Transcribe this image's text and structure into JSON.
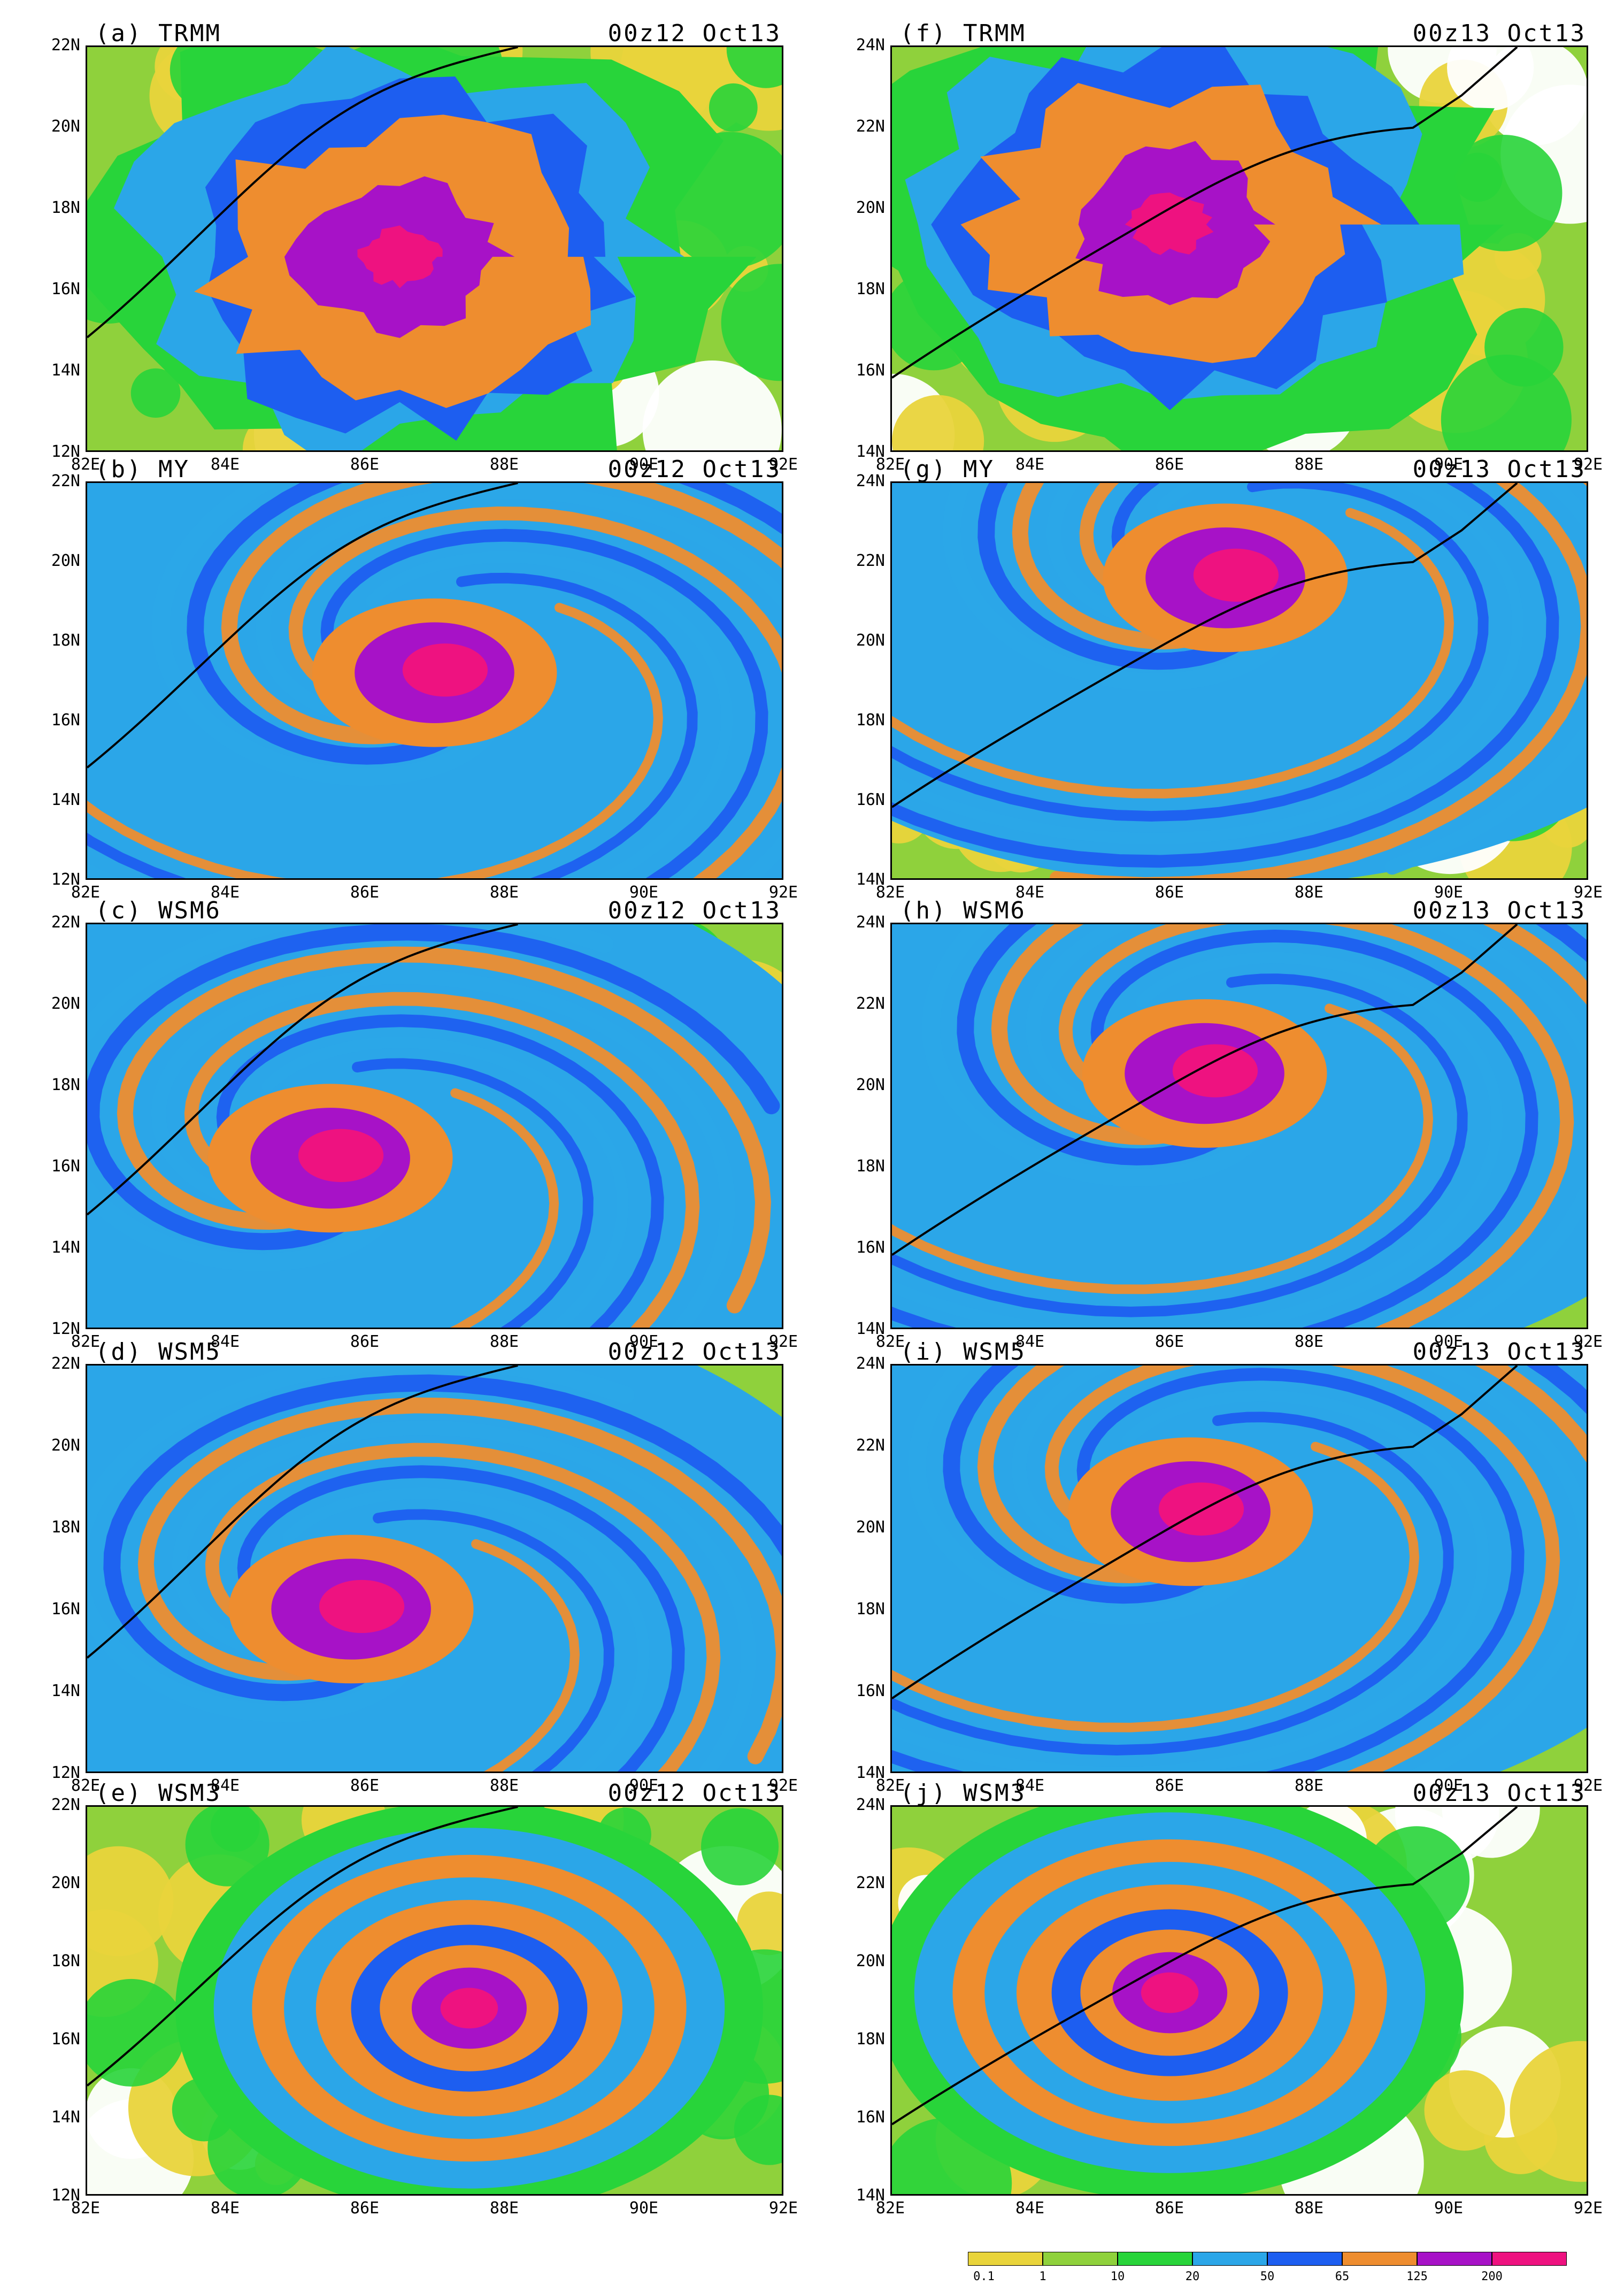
{
  "colors": {
    "0.1": "#e9d43b",
    "1": "#8fd13c",
    "10": "#28d43a",
    "20": "#2ba6e8",
    "50": "#1d5ef0",
    "65": "#ee8d2f",
    "125": "#a712c7",
    "200": "#ee1280"
  },
  "colorbar": {
    "labels": [
      "0.1",
      "1",
      "10",
      "20",
      "50",
      "65",
      "125",
      "200"
    ],
    "colors": [
      "#e9d43b",
      "#8fd13c",
      "#28d43a",
      "#2ba6e8",
      "#1d5ef0",
      "#ee8d2f",
      "#a712c7",
      "#ee1280"
    ]
  },
  "axes": {
    "lon_labels": [
      "82E",
      "84E",
      "86E",
      "88E",
      "90E",
      "92E"
    ],
    "lon_range": [
      82,
      92
    ],
    "left_lat_labels": [
      "12N",
      "14N",
      "16N",
      "18N",
      "20N",
      "22N"
    ],
    "left_lat_range": [
      12,
      22
    ],
    "right_lat_labels": [
      "14N",
      "16N",
      "18N",
      "20N",
      "22N",
      "24N"
    ],
    "right_lat_range": [
      14,
      24
    ]
  },
  "panels": [
    {
      "id": "a",
      "title": "(a) TRMM",
      "time": "00z12 Oct13",
      "column": "left",
      "row": 0,
      "center": [
        86.5,
        16.8
      ],
      "pattern": "blob"
    },
    {
      "id": "b",
      "title": "(b) MY",
      "time": "00z12 Oct13",
      "column": "left",
      "row": 1,
      "center": [
        87,
        17.2
      ],
      "pattern": "spiral"
    },
    {
      "id": "c",
      "title": "(c) WSM6",
      "time": "00z12 Oct13",
      "column": "left",
      "row": 2,
      "center": [
        85.5,
        16.2
      ],
      "pattern": "spiral"
    },
    {
      "id": "d",
      "title": "(d) WSM5",
      "time": "00z12 Oct13",
      "column": "left",
      "row": 3,
      "center": [
        85.8,
        16
      ],
      "pattern": "spiral"
    },
    {
      "id": "e",
      "title": "(e) WSM3",
      "time": "00z12 Oct13",
      "column": "left",
      "row": 4,
      "center": [
        87.5,
        16.8
      ],
      "pattern": "ring"
    },
    {
      "id": "f",
      "title": "(f) TRMM",
      "time": "00z13 Oct13",
      "column": "right",
      "row": 0,
      "center": [
        86,
        19.6
      ],
      "pattern": "blob"
    },
    {
      "id": "g",
      "title": "(g) MY",
      "time": "00z13 Oct13",
      "column": "right",
      "row": 1,
      "center": [
        86.8,
        21.6
      ],
      "pattern": "spiral"
    },
    {
      "id": "h",
      "title": "(h) WSM6",
      "time": "00z13 Oct13",
      "column": "right",
      "row": 2,
      "center": [
        86.5,
        20.3
      ],
      "pattern": "spiral"
    },
    {
      "id": "i",
      "title": "(i) WSM5",
      "time": "00z13 Oct13",
      "column": "right",
      "row": 3,
      "center": [
        86.3,
        20.4
      ],
      "pattern": "spiral"
    },
    {
      "id": "j",
      "title": "(j) WSM3",
      "time": "00z13 Oct13",
      "column": "right",
      "row": 4,
      "center": [
        86,
        19.2
      ],
      "pattern": "ring"
    }
  ]
}
